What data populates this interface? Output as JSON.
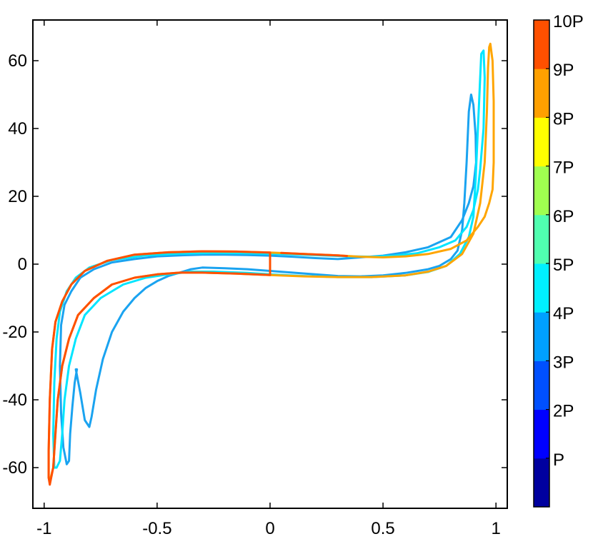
{
  "chart_data": {
    "type": "line",
    "title": "",
    "xlabel": "",
    "ylabel": "",
    "xlim": [
      -1.05,
      1.05
    ],
    "ylim": [
      -72,
      72
    ],
    "xticks": [
      -1,
      -0.5,
      0,
      0.5,
      1
    ],
    "xtick_labels": [
      "-1",
      "-0.5",
      "0",
      "0.5",
      "1"
    ],
    "yticks": [
      -60,
      -40,
      -20,
      0,
      20,
      40,
      60
    ],
    "ytick_labels": [
      "-60",
      "-40",
      "-20",
      "0",
      "20",
      "40",
      "60"
    ],
    "grid": false,
    "colorbar": {
      "labels": [
        "P",
        "2P",
        "3P",
        "4P",
        "5P",
        "6P",
        "7P",
        "8P",
        "9P",
        "10P"
      ],
      "colors": [
        "#00009F",
        "#0000FF",
        "#0050FF",
        "#00A0FF",
        "#00F0FF",
        "#50FFB0",
        "#A0FF50",
        "#FFFF00",
        "#FFA000",
        "#FF5000"
      ]
    },
    "series": [
      {
        "color": "#1AA3F0",
        "points": [
          [
            -0.86,
            -31
          ],
          [
            -0.84,
            -38
          ],
          [
            -0.82,
            -46
          ],
          [
            -0.8,
            -48
          ],
          [
            -0.79,
            -45
          ],
          [
            -0.77,
            -37
          ],
          [
            -0.74,
            -28
          ],
          [
            -0.7,
            -20
          ],
          [
            -0.65,
            -14
          ],
          [
            -0.6,
            -10
          ],
          [
            -0.55,
            -7
          ],
          [
            -0.5,
            -5
          ],
          [
            -0.45,
            -3.5
          ],
          [
            -0.4,
            -2.5
          ],
          [
            -0.35,
            -1.5
          ],
          [
            -0.3,
            -1.0
          ],
          [
            -0.2,
            -1.2
          ],
          [
            -0.1,
            -1.5
          ],
          [
            0.0,
            -2.0
          ],
          [
            0.1,
            -2.5
          ],
          [
            0.2,
            -3.0
          ],
          [
            0.3,
            -3.5
          ],
          [
            0.4,
            -3.6
          ],
          [
            0.5,
            -3.3
          ],
          [
            0.6,
            -2.6
          ],
          [
            0.7,
            -1.5
          ],
          [
            0.75,
            -0.5
          ],
          [
            0.8,
            1.5
          ],
          [
            0.83,
            4
          ],
          [
            0.85,
            10
          ],
          [
            0.86,
            18
          ],
          [
            0.87,
            30
          ],
          [
            0.88,
            45
          ],
          [
            0.89,
            50
          ],
          [
            0.9,
            47
          ],
          [
            0.91,
            38
          ],
          [
            0.912,
            30
          ],
          [
            0.9,
            23
          ],
          [
            0.88,
            18
          ],
          [
            0.85,
            13
          ],
          [
            0.8,
            8
          ],
          [
            0.7,
            5
          ],
          [
            0.6,
            3.5
          ],
          [
            0.5,
            2.5
          ],
          [
            0.4,
            2.0
          ],
          [
            0.3,
            1.5
          ],
          [
            0.2,
            1.8
          ],
          [
            0.1,
            2.2
          ],
          [
            0.0,
            2.5
          ],
          [
            -0.1,
            2.7
          ],
          [
            -0.2,
            2.8
          ],
          [
            -0.3,
            2.8
          ],
          [
            -0.4,
            2.6
          ],
          [
            -0.5,
            2.3
          ],
          [
            -0.6,
            1.5
          ],
          [
            -0.7,
            0.5
          ],
          [
            -0.78,
            -1.5
          ],
          [
            -0.84,
            -4
          ],
          [
            -0.88,
            -8
          ],
          [
            -0.91,
            -12
          ],
          [
            -0.925,
            -18
          ],
          [
            -0.93,
            -30
          ],
          [
            -0.925,
            -44
          ],
          [
            -0.915,
            -54
          ],
          [
            -0.9,
            -59
          ],
          [
            -0.89,
            -58
          ],
          [
            -0.885,
            -50
          ],
          [
            -0.875,
            -42
          ],
          [
            -0.865,
            -35
          ],
          [
            -0.855,
            -31
          ]
        ]
      },
      {
        "color": "#00E5FF",
        "points": [
          [
            -0.945,
            -60
          ],
          [
            -0.93,
            -58
          ],
          [
            -0.92,
            -50
          ],
          [
            -0.91,
            -40
          ],
          [
            -0.89,
            -30
          ],
          [
            -0.86,
            -22
          ],
          [
            -0.82,
            -15
          ],
          [
            -0.75,
            -10
          ],
          [
            -0.65,
            -6
          ],
          [
            -0.55,
            -4
          ],
          [
            -0.45,
            -3
          ],
          [
            -0.35,
            -2.2
          ],
          [
            -0.25,
            -2.2
          ],
          [
            -0.1,
            -2.6
          ],
          [
            0.0,
            -3.0
          ],
          [
            0.15,
            -3.5
          ],
          [
            0.3,
            -3.8
          ],
          [
            0.45,
            -3.8
          ],
          [
            0.6,
            -3.3
          ],
          [
            0.7,
            -2.3
          ],
          [
            0.78,
            -0.5
          ],
          [
            0.84,
            3
          ],
          [
            0.88,
            8
          ],
          [
            0.9,
            14
          ],
          [
            0.91,
            25
          ],
          [
            0.92,
            40
          ],
          [
            0.93,
            55
          ],
          [
            0.935,
            62
          ],
          [
            0.945,
            63
          ],
          [
            0.95,
            55
          ],
          [
            0.945,
            40
          ],
          [
            0.93,
            28
          ],
          [
            0.92,
            22
          ],
          [
            0.9,
            16
          ],
          [
            0.87,
            11
          ],
          [
            0.82,
            7
          ],
          [
            0.75,
            5
          ],
          [
            0.65,
            3.2
          ],
          [
            0.55,
            2.5
          ],
          [
            0.45,
            2.2
          ],
          [
            0.35,
            2.3
          ],
          [
            0.2,
            2.7
          ],
          [
            0.05,
            3.0
          ],
          [
            -0.1,
            3.2
          ],
          [
            -0.25,
            3.3
          ],
          [
            -0.4,
            3.1
          ],
          [
            -0.55,
            2.6
          ],
          [
            -0.7,
            1.2
          ],
          [
            -0.8,
            -1
          ],
          [
            -0.86,
            -4
          ],
          [
            -0.9,
            -8
          ],
          [
            -0.93,
            -14
          ],
          [
            -0.945,
            -22
          ],
          [
            -0.955,
            -35
          ],
          [
            -0.96,
            -50
          ],
          [
            -0.955,
            -60
          ],
          [
            -0.945,
            -60
          ]
        ]
      },
      {
        "color": "#FFA500",
        "points": [
          [
            -0.975,
            -64
          ],
          [
            -0.96,
            -60
          ],
          [
            -0.95,
            -50
          ],
          [
            -0.94,
            -40
          ],
          [
            -0.92,
            -30
          ],
          [
            -0.89,
            -22
          ],
          [
            -0.85,
            -15
          ],
          [
            -0.78,
            -10
          ],
          [
            -0.7,
            -6
          ],
          [
            -0.6,
            -4
          ],
          [
            -0.5,
            -3
          ],
          [
            -0.4,
            -2.5
          ],
          [
            -0.3,
            -2.5
          ],
          [
            -0.15,
            -2.8
          ],
          [
            0.0,
            -3.2
          ],
          [
            0.15,
            -3.6
          ],
          [
            0.3,
            -3.8
          ],
          [
            0.45,
            -3.8
          ],
          [
            0.6,
            -3.3
          ],
          [
            0.7,
            -2.2
          ],
          [
            0.78,
            -0.5
          ],
          [
            0.85,
            3
          ],
          [
            0.9,
            9
          ],
          [
            0.93,
            18
          ],
          [
            0.95,
            30
          ],
          [
            0.96,
            45
          ],
          [
            0.965,
            58
          ],
          [
            0.97,
            64
          ],
          [
            0.975,
            65
          ],
          [
            0.985,
            60
          ],
          [
            0.99,
            48
          ],
          [
            0.99,
            30
          ],
          [
            0.985,
            22
          ],
          [
            0.97,
            18
          ],
          [
            0.95,
            14
          ],
          [
            0.92,
            11
          ],
          [
            0.87,
            7
          ],
          [
            0.8,
            4.5
          ],
          [
            0.7,
            3
          ],
          [
            0.6,
            2.3
          ],
          [
            0.5,
            2.0
          ],
          [
            0.4,
            2.2
          ],
          [
            0.3,
            2.6
          ],
          [
            0.15,
            3.0
          ],
          [
            0.0,
            3.4
          ],
          [
            -0.15,
            3.7
          ],
          [
            -0.3,
            3.8
          ],
          [
            -0.45,
            3.5
          ],
          [
            -0.6,
            2.8
          ],
          [
            -0.72,
            1
          ],
          [
            -0.82,
            -2
          ],
          [
            -0.88,
            -6
          ],
          [
            -0.92,
            -11
          ],
          [
            -0.95,
            -17
          ],
          [
            -0.965,
            -25
          ],
          [
            -0.975,
            -40
          ],
          [
            -0.98,
            -55
          ],
          [
            -0.98,
            -63
          ],
          [
            -0.975,
            -64
          ]
        ]
      },
      {
        "color": "#FF5000",
        "points": [
          [
            -0.975,
            -65
          ],
          [
            -0.96,
            -60
          ],
          [
            -0.95,
            -50
          ],
          [
            -0.94,
            -40
          ],
          [
            -0.92,
            -30
          ],
          [
            -0.89,
            -22
          ],
          [
            -0.85,
            -15
          ],
          [
            -0.78,
            -10
          ],
          [
            -0.7,
            -6
          ],
          [
            -0.6,
            -4
          ],
          [
            -0.5,
            -3
          ],
          [
            -0.4,
            -2.5
          ],
          [
            -0.3,
            -2.5
          ],
          [
            -0.15,
            -2.8
          ],
          [
            0.0,
            -3.2
          ],
          [
            0.0,
            3.4
          ],
          [
            -0.15,
            3.7
          ],
          [
            -0.3,
            3.8
          ],
          [
            -0.45,
            3.5
          ],
          [
            -0.6,
            2.8
          ],
          [
            -0.72,
            1
          ],
          [
            -0.82,
            -2
          ],
          [
            -0.88,
            -6
          ],
          [
            -0.92,
            -11
          ],
          [
            -0.95,
            -17
          ],
          [
            -0.965,
            -25
          ],
          [
            -0.975,
            -40
          ],
          [
            -0.98,
            -55
          ],
          [
            -0.98,
            -63
          ],
          [
            -0.975,
            -65
          ]
        ]
      },
      {
        "color": "#FF5000",
        "points": [
          [
            0.05,
            3.3
          ],
          [
            0.15,
            3.0
          ],
          [
            0.3,
            2.6
          ],
          [
            0.34,
            2.4
          ]
        ]
      }
    ]
  }
}
